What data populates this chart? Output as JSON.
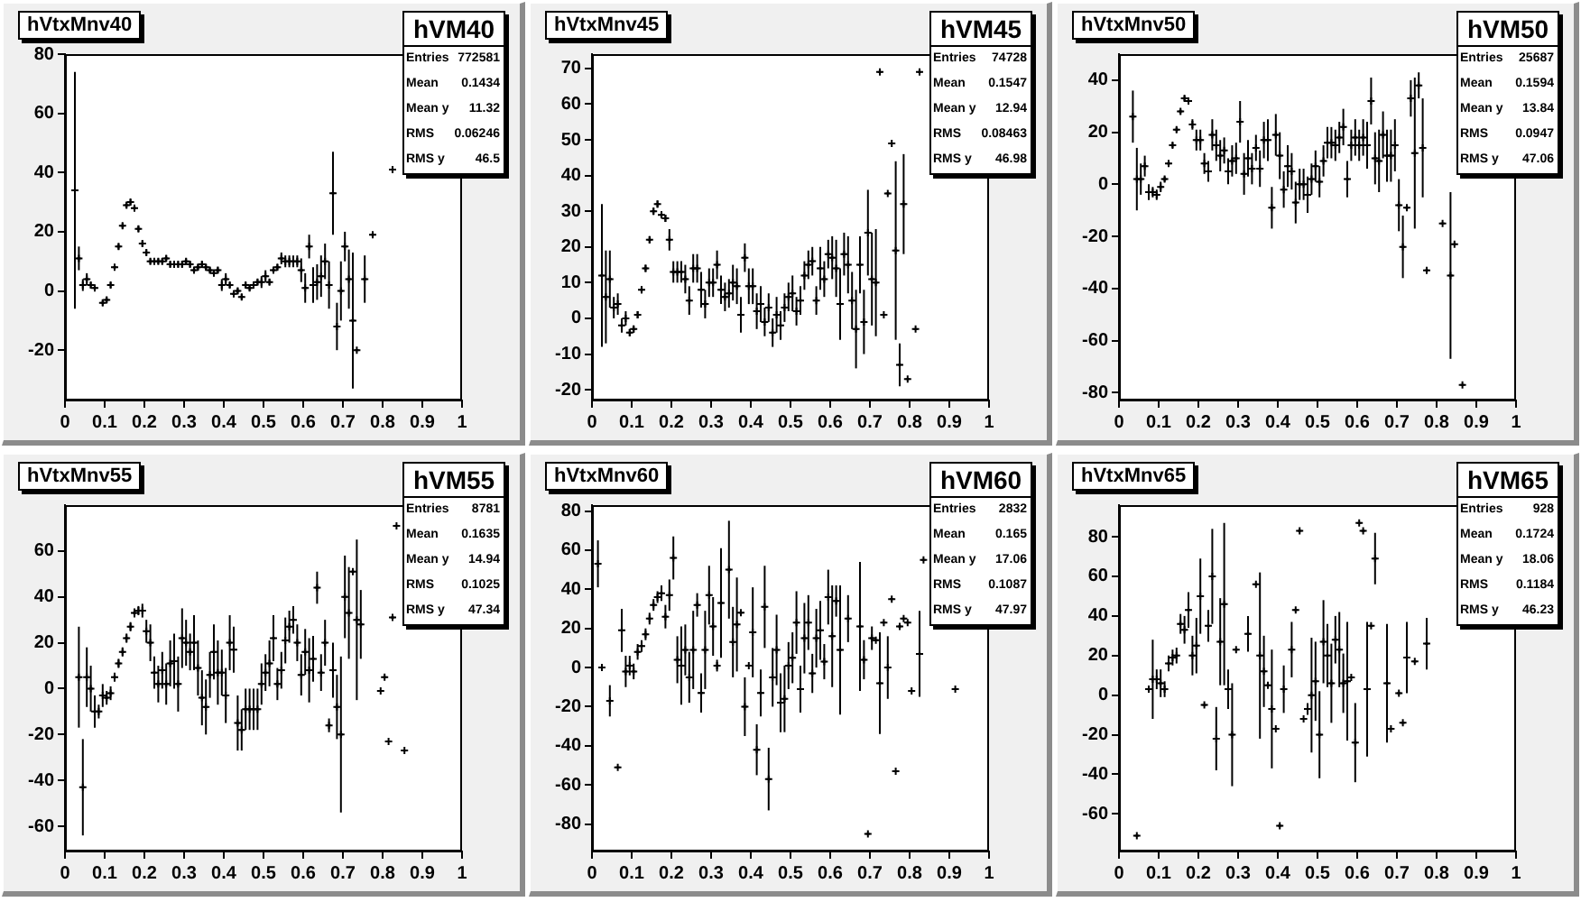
{
  "chart_data": [
    {
      "type": "scatter",
      "title": "hVtxMnv40",
      "annotations": [
        "hVM40",
        "Entries",
        "772581",
        "Mean",
        "0.1434",
        "Mean y",
        "11.32",
        "RMS",
        "0.06246",
        "RMS y",
        "46.5"
      ],
      "color": "#000000",
      "marker": "cross",
      "xlim": [
        0,
        1
      ],
      "xticks": [
        0,
        0.1,
        0.2,
        0.3,
        0.4,
        0.5,
        0.6,
        0.7,
        0.8,
        0.9,
        1
      ],
      "ylim": [
        -37,
        80
      ],
      "yticks": [
        -20,
        0,
        20,
        40,
        60,
        80
      ],
      "x": [
        0.025,
        0.035,
        0.045,
        0.055,
        0.065,
        0.075,
        0.095,
        0.105,
        0.115,
        0.125,
        0.135,
        0.145,
        0.155,
        0.165,
        0.175,
        0.185,
        0.195,
        0.205,
        0.215,
        0.225,
        0.235,
        0.245,
        0.255,
        0.265,
        0.275,
        0.285,
        0.295,
        0.305,
        0.315,
        0.325,
        0.335,
        0.345,
        0.355,
        0.365,
        0.375,
        0.385,
        0.395,
        0.405,
        0.415,
        0.425,
        0.435,
        0.445,
        0.455,
        0.465,
        0.475,
        0.485,
        0.495,
        0.505,
        0.515,
        0.525,
        0.535,
        0.545,
        0.555,
        0.565,
        0.575,
        0.585,
        0.595,
        0.605,
        0.615,
        0.625,
        0.635,
        0.645,
        0.655,
        0.665,
        0.675,
        0.685,
        0.695,
        0.705,
        0.715,
        0.725,
        0.735,
        0.755,
        0.775,
        0.825
      ],
      "values": [
        34,
        11,
        2,
        4,
        2,
        1,
        -4,
        -3,
        2,
        8,
        15,
        22,
        29,
        30,
        28,
        21,
        16,
        13,
        10,
        10,
        10,
        10,
        11,
        9,
        9,
        9,
        9,
        10,
        9,
        7,
        8,
        9,
        8,
        7,
        6,
        7,
        2,
        4,
        2,
        -1,
        0,
        -2,
        2,
        1,
        2,
        3,
        3,
        5,
        3,
        7,
        8,
        11,
        10,
        10,
        10,
        10,
        7,
        1,
        15,
        2,
        3,
        5,
        10,
        2,
        33,
        -12,
        0,
        15,
        4,
        -10,
        -20,
        4,
        19,
        41
      ],
      "errors": [
        40,
        4,
        2,
        2,
        1,
        1,
        1,
        1,
        1,
        1,
        1,
        1,
        1,
        1,
        1,
        1,
        1,
        1,
        1,
        1,
        1,
        1,
        1,
        1,
        1,
        1,
        1,
        1,
        1,
        1,
        1,
        1,
        1,
        1,
        1,
        1,
        2,
        2,
        1,
        1,
        1,
        1,
        1,
        1,
        1,
        1,
        2,
        2,
        1,
        1,
        1,
        2,
        2,
        2,
        2,
        2,
        4,
        5,
        4,
        6,
        6,
        7,
        6,
        8,
        14,
        8,
        10,
        5,
        10,
        23,
        null,
        8,
        null,
        null
      ],
      "xerrors": [
        0.005,
        0.005,
        0.005,
        0.005,
        0.005,
        0.005,
        0.005,
        0.005,
        0.005,
        0.005,
        0.005,
        0.005,
        0.005,
        0.005,
        0.005,
        0.005,
        0.005,
        0.005,
        0.005,
        0.005,
        0.005,
        0.005,
        0.005,
        0.005,
        0.005,
        0.005,
        0.005,
        0.005,
        0.005,
        0.005,
        0.005,
        0.005,
        0.005,
        0.005,
        0.005,
        0.005,
        0.005,
        0.005,
        0.005,
        0.005,
        0.005,
        0.005,
        0.005,
        0.005,
        0.005,
        0.005,
        0.005,
        0.005,
        0.005,
        0.005,
        0.005,
        0.005,
        0.005,
        0.005,
        0.005,
        0.005,
        0.005,
        0.005,
        0.005,
        0.005,
        0.005,
        0.005,
        0.005,
        0.005,
        0.005,
        0.005,
        0.005,
        0.005,
        0.005,
        0.005,
        0.005,
        0.005,
        0.005,
        0.005
      ]
    },
    {
      "type": "scatter",
      "title": "hVtxMnv45",
      "annotations": [
        "hVM45",
        "Entries",
        "74728",
        "Mean",
        "0.1547",
        "Mean y",
        "12.94",
        "RMS",
        "0.08463",
        "RMS y",
        "46.98"
      ],
      "color": "#000000",
      "marker": "cross",
      "xlim": [
        0,
        1
      ],
      "xticks": [
        0,
        0.1,
        0.2,
        0.3,
        0.4,
        0.5,
        0.6,
        0.7,
        0.8,
        0.9,
        1
      ],
      "ylim": [
        -23,
        74
      ],
      "yticks": [
        -20,
        -10,
        0,
        10,
        20,
        30,
        40,
        50,
        60,
        70
      ],
      "x": [
        0.025,
        0.035,
        0.045,
        0.055,
        0.065,
        0.075,
        0.085,
        0.095,
        0.105,
        0.115,
        0.125,
        0.135,
        0.145,
        0.155,
        0.165,
        0.175,
        0.185,
        0.195,
        0.205,
        0.215,
        0.225,
        0.235,
        0.245,
        0.255,
        0.265,
        0.275,
        0.285,
        0.295,
        0.305,
        0.315,
        0.325,
        0.335,
        0.345,
        0.355,
        0.365,
        0.375,
        0.385,
        0.395,
        0.405,
        0.415,
        0.425,
        0.435,
        0.445,
        0.455,
        0.465,
        0.475,
        0.485,
        0.495,
        0.505,
        0.515,
        0.525,
        0.535,
        0.545,
        0.555,
        0.565,
        0.575,
        0.585,
        0.595,
        0.605,
        0.615,
        0.625,
        0.635,
        0.645,
        0.655,
        0.665,
        0.675,
        0.685,
        0.695,
        0.705,
        0.715,
        0.725,
        0.735,
        0.745,
        0.755,
        0.765,
        0.775,
        0.785,
        0.795,
        0.815,
        0.825
      ],
      "values": [
        12,
        6,
        11,
        3,
        4,
        -2,
        0,
        -4,
        -3,
        1,
        8,
        14,
        22,
        30,
        32,
        29,
        28,
        22,
        13,
        13,
        13,
        11,
        5,
        14,
        14,
        8,
        4,
        10,
        10,
        15,
        8,
        6,
        7,
        10,
        9,
        1,
        17,
        9,
        9,
        2,
        4,
        -1,
        3,
        -4,
        1,
        -2,
        3,
        6,
        7,
        2,
        5,
        12,
        15,
        16,
        5,
        14,
        11,
        18,
        17,
        14,
        4,
        18,
        15,
        5,
        -3,
        15,
        -1,
        24,
        11,
        10,
        69,
        1,
        35,
        49,
        19,
        -13,
        32,
        -17,
        -3,
        69
      ],
      "errors": [
        20,
        13,
        8,
        3,
        3,
        2,
        2,
        1,
        1,
        1,
        1,
        1,
        1,
        1,
        1,
        1,
        1,
        3,
        3,
        3,
        3,
        4,
        4,
        4,
        4,
        5,
        4,
        4,
        4,
        4,
        4,
        4,
        4,
        5,
        5,
        5,
        4,
        5,
        5,
        5,
        5,
        4,
        4,
        4,
        5,
        4,
        4,
        4,
        5,
        4,
        4,
        4,
        4,
        4,
        4,
        6,
        5,
        4,
        6,
        8,
        10,
        6,
        8,
        8,
        11,
        8,
        9,
        12,
        13,
        15,
        null,
        null,
        null,
        null,
        25,
        6,
        14,
        null,
        null,
        null
      ],
      "xerrors": [
        0.005,
        0.005,
        0.005,
        0.005,
        0.005,
        0.005,
        0.005,
        0.005,
        0.005,
        0.005,
        0.005,
        0.005,
        0.005,
        0.005,
        0.005,
        0.005,
        0.005,
        0.005,
        0.005,
        0.005,
        0.005,
        0.005,
        0.005,
        0.005,
        0.005,
        0.005,
        0.005,
        0.005,
        0.005,
        0.005,
        0.005,
        0.005,
        0.005,
        0.005,
        0.005,
        0.005,
        0.005,
        0.005,
        0.005,
        0.005,
        0.005,
        0.005,
        0.005,
        0.005,
        0.005,
        0.005,
        0.005,
        0.005,
        0.005,
        0.005,
        0.005,
        0.005,
        0.005,
        0.005,
        0.005,
        0.005,
        0.005,
        0.005,
        0.005,
        0.005,
        0.005,
        0.005,
        0.005,
        0.005,
        0.005,
        0.005,
        0.005,
        0.005,
        0.005,
        0.005,
        0.005,
        0.005,
        0.005,
        0.005,
        0.005,
        0.005,
        0.005,
        0.005,
        0.005,
        0.005
      ]
    },
    {
      "type": "scatter",
      "title": "hVtxMnv50",
      "annotations": [
        "hVM50",
        "Entries",
        "25687",
        "Mean",
        "0.1594",
        "Mean y",
        "13.84",
        "RMS",
        "0.0947",
        "RMS y",
        "47.06"
      ],
      "color": "#000000",
      "marker": "cross",
      "xlim": [
        0,
        1
      ],
      "xticks": [
        0,
        0.1,
        0.2,
        0.3,
        0.4,
        0.5,
        0.6,
        0.7,
        0.8,
        0.9,
        1
      ],
      "ylim": [
        -83,
        50
      ],
      "yticks": [
        -80,
        -60,
        -40,
        -20,
        0,
        20,
        40
      ],
      "x": [
        0.035,
        0.045,
        0.055,
        0.065,
        0.075,
        0.085,
        0.095,
        0.105,
        0.115,
        0.125,
        0.135,
        0.145,
        0.155,
        0.165,
        0.175,
        0.185,
        0.195,
        0.205,
        0.215,
        0.225,
        0.235,
        0.245,
        0.255,
        0.265,
        0.275,
        0.285,
        0.295,
        0.305,
        0.315,
        0.325,
        0.335,
        0.345,
        0.355,
        0.365,
        0.375,
        0.385,
        0.395,
        0.405,
        0.415,
        0.425,
        0.435,
        0.445,
        0.455,
        0.465,
        0.475,
        0.485,
        0.495,
        0.505,
        0.515,
        0.525,
        0.535,
        0.545,
        0.555,
        0.565,
        0.575,
        0.585,
        0.595,
        0.605,
        0.615,
        0.625,
        0.635,
        0.645,
        0.655,
        0.665,
        0.675,
        0.685,
        0.695,
        0.705,
        0.715,
        0.725,
        0.735,
        0.745,
        0.755,
        0.765,
        0.775,
        0.815,
        0.835,
        0.845,
        0.865
      ],
      "values": [
        26,
        2,
        2,
        7,
        -3,
        -3,
        -4,
        -1,
        2,
        8,
        15,
        21,
        28,
        33,
        32,
        23,
        17,
        17,
        8,
        5,
        19,
        15,
        11,
        13,
        5,
        9,
        10,
        24,
        4,
        10,
        6,
        14,
        6,
        17,
        17,
        -9,
        19,
        11,
        -2,
        7,
        5,
        -7,
        0,
        0,
        -4,
        2,
        7,
        1,
        9,
        16,
        16,
        15,
        18,
        22,
        2,
        15,
        18,
        15,
        18,
        15,
        32,
        10,
        9,
        19,
        11,
        11,
        15,
        -8,
        -24,
        -9,
        33,
        12,
        38,
        14,
        -33,
        -15,
        -35,
        -23,
        -77
      ],
      "errors": [
        10,
        12,
        6,
        4,
        3,
        2,
        2,
        2,
        1,
        1,
        1,
        1,
        1,
        1,
        1,
        2,
        4,
        4,
        4,
        4,
        6,
        6,
        6,
        5,
        5,
        6,
        6,
        8,
        8,
        7,
        6,
        5,
        7,
        7,
        8,
        8,
        8,
        9,
        7,
        8,
        7,
        8,
        6,
        6,
        7,
        6,
        6,
        6,
        6,
        6,
        6,
        6,
        6,
        7,
        7,
        6,
        7,
        6,
        7,
        9,
        9,
        10,
        12,
        9,
        10,
        10,
        10,
        10,
        12,
        null,
        7,
        29,
        5,
        19,
        null,
        null,
        32,
        null,
        null
      ],
      "xerrors": [
        0.005,
        0.005,
        0.005,
        0.005,
        0.005,
        0.005,
        0.005,
        0.005,
        0.005,
        0.005,
        0.005,
        0.005,
        0.005,
        0.005,
        0.005,
        0.005,
        0.005,
        0.005,
        0.005,
        0.005,
        0.005,
        0.005,
        0.005,
        0.005,
        0.005,
        0.005,
        0.005,
        0.005,
        0.005,
        0.005,
        0.005,
        0.005,
        0.005,
        0.005,
        0.005,
        0.005,
        0.005,
        0.005,
        0.005,
        0.005,
        0.005,
        0.005,
        0.005,
        0.005,
        0.005,
        0.005,
        0.005,
        0.005,
        0.005,
        0.005,
        0.005,
        0.005,
        0.005,
        0.005,
        0.005,
        0.005,
        0.005,
        0.005,
        0.005,
        0.005,
        0.005,
        0.005,
        0.005,
        0.005,
        0.005,
        0.005,
        0.005,
        0.005,
        0.005,
        0.005,
        0.005,
        0.005,
        0.005,
        0.005,
        0.005,
        0.005,
        0.005,
        0.005,
        0.005
      ]
    },
    {
      "type": "scatter",
      "title": "hVtxMnv55",
      "annotations": [
        "hVM55",
        "Entries",
        "8781",
        "Mean",
        "0.1635",
        "Mean y",
        "14.94",
        "RMS",
        "0.1025",
        "RMS y",
        "47.34"
      ],
      "color": "#000000",
      "marker": "cross",
      "xlim": [
        0,
        1
      ],
      "xticks": [
        0,
        0.1,
        0.2,
        0.3,
        0.4,
        0.5,
        0.6,
        0.7,
        0.8,
        0.9,
        1
      ],
      "ylim": [
        -71,
        80
      ],
      "yticks": [
        -60,
        -40,
        -20,
        0,
        20,
        40,
        60
      ],
      "x": [
        0.035,
        0.045,
        0.055,
        0.065,
        0.075,
        0.085,
        0.095,
        0.105,
        0.115,
        0.125,
        0.135,
        0.145,
        0.155,
        0.165,
        0.175,
        0.185,
        0.195,
        0.205,
        0.215,
        0.225,
        0.235,
        0.245,
        0.255,
        0.265,
        0.275,
        0.285,
        0.295,
        0.305,
        0.315,
        0.325,
        0.335,
        0.345,
        0.355,
        0.365,
        0.375,
        0.385,
        0.395,
        0.405,
        0.415,
        0.425,
        0.435,
        0.445,
        0.455,
        0.465,
        0.475,
        0.485,
        0.495,
        0.505,
        0.515,
        0.525,
        0.535,
        0.545,
        0.555,
        0.565,
        0.575,
        0.585,
        0.595,
        0.605,
        0.615,
        0.625,
        0.635,
        0.645,
        0.655,
        0.665,
        0.675,
        0.685,
        0.695,
        0.705,
        0.715,
        0.725,
        0.735,
        0.745,
        0.795,
        0.805,
        0.815,
        0.825,
        0.835,
        0.855
      ],
      "values": [
        5,
        -43,
        5,
        0,
        -10,
        -10,
        -3,
        -4,
        -2,
        5,
        11,
        16,
        22,
        27,
        33,
        34,
        34,
        25,
        20,
        7,
        2,
        8,
        2,
        11,
        12,
        2,
        22,
        20,
        16,
        20,
        9,
        -4,
        -8,
        6,
        16,
        7,
        7,
        -3,
        20,
        17,
        -15,
        -18,
        -9,
        -9,
        -9,
        -9,
        2,
        7,
        11,
        22,
        2,
        8,
        21,
        27,
        30,
        20,
        6,
        16,
        8,
        13,
        44,
        7,
        20,
        -16,
        8,
        -8,
        -20,
        40,
        33,
        51,
        30,
        28,
        -1,
        5,
        -23,
        31,
        71,
        -27
      ],
      "errors": [
        22,
        21,
        13,
        10,
        7,
        3,
        5,
        3,
        3,
        2,
        2,
        2,
        2,
        2,
        2,
        2,
        3,
        5,
        8,
        7,
        8,
        8,
        9,
        10,
        12,
        12,
        13,
        10,
        8,
        12,
        12,
        12,
        12,
        10,
        12,
        14,
        10,
        12,
        12,
        10,
        12,
        9,
        9,
        9,
        9,
        9,
        9,
        8,
        10,
        10,
        7,
        8,
        10,
        7,
        6,
        8,
        9,
        10,
        14,
        10,
        7,
        8,
        10,
        3,
        12,
        14,
        34,
        18,
        20,
        null,
        35,
        15,
        null,
        null,
        null,
        null,
        null,
        null
      ],
      "xerrors": [
        0.005,
        0.005,
        0.005,
        0.005,
        0.005,
        0.005,
        0.005,
        0.005,
        0.005,
        0.005,
        0.005,
        0.005,
        0.005,
        0.005,
        0.005,
        0.005,
        0.005,
        0.005,
        0.005,
        0.005,
        0.005,
        0.005,
        0.005,
        0.005,
        0.005,
        0.005,
        0.005,
        0.005,
        0.005,
        0.005,
        0.005,
        0.005,
        0.005,
        0.005,
        0.005,
        0.005,
        0.005,
        0.005,
        0.005,
        0.005,
        0.005,
        0.005,
        0.005,
        0.005,
        0.005,
        0.005,
        0.005,
        0.005,
        0.005,
        0.005,
        0.005,
        0.005,
        0.005,
        0.005,
        0.005,
        0.005,
        0.005,
        0.005,
        0.005,
        0.005,
        0.005,
        0.005,
        0.005,
        0.005,
        0.005,
        0.005,
        0.005,
        0.005,
        0.005,
        0.005,
        0.005,
        0.005,
        0.005,
        0.005,
        0.005,
        0.005,
        0.005,
        0.005
      ]
    },
    {
      "type": "scatter",
      "title": "hVtxMnv60",
      "annotations": [
        "hVM60",
        "Entries",
        "2832",
        "Mean",
        "0.165",
        "Mean y",
        "17.06",
        "RMS",
        "0.1087",
        "RMS y",
        "47.97"
      ],
      "color": "#000000",
      "marker": "cross",
      "xlim": [
        0,
        1
      ],
      "xticks": [
        0,
        0.1,
        0.2,
        0.3,
        0.4,
        0.5,
        0.6,
        0.7,
        0.8,
        0.9,
        1
      ],
      "ylim": [
        -94,
        83
      ],
      "yticks": [
        -80,
        -60,
        -40,
        -20,
        0,
        20,
        40,
        60,
        80
      ],
      "x": [
        0.015,
        0.025,
        0.045,
        0.065,
        0.075,
        0.085,
        0.095,
        0.105,
        0.115,
        0.125,
        0.135,
        0.145,
        0.155,
        0.165,
        0.175,
        0.185,
        0.195,
        0.205,
        0.215,
        0.225,
        0.235,
        0.245,
        0.255,
        0.265,
        0.275,
        0.285,
        0.295,
        0.305,
        0.315,
        0.325,
        0.345,
        0.355,
        0.365,
        0.375,
        0.385,
        0.395,
        0.405,
        0.415,
        0.425,
        0.435,
        0.445,
        0.455,
        0.465,
        0.475,
        0.485,
        0.495,
        0.505,
        0.515,
        0.525,
        0.535,
        0.545,
        0.555,
        0.565,
        0.575,
        0.585,
        0.595,
        0.605,
        0.615,
        0.625,
        0.645,
        0.675,
        0.685,
        0.695,
        0.705,
        0.715,
        0.725,
        0.735,
        0.745,
        0.755,
        0.765,
        0.775,
        0.785,
        0.795,
        0.805,
        0.825,
        0.835,
        0.915
      ],
      "values": [
        53,
        0,
        -17,
        -51,
        19,
        -2,
        1,
        -2,
        8,
        11,
        17,
        25,
        32,
        36,
        38,
        26,
        37,
        56,
        4,
        1,
        9,
        -5,
        9,
        32,
        -13,
        9,
        37,
        21,
        1,
        33,
        50,
        13,
        22,
        28,
        -20,
        1,
        18,
        -42,
        -13,
        31,
        -57,
        -5,
        9,
        -18,
        -16,
        1,
        5,
        23,
        -11,
        15,
        23,
        -3,
        15,
        19,
        3,
        36,
        16,
        34,
        9,
        25,
        21,
        4,
        -85,
        15,
        14,
        -8,
        23,
        0,
        35,
        -53,
        21,
        25,
        23,
        -12,
        7,
        55,
        -11
      ],
      "errors": [
        12,
        null,
        8,
        null,
        11,
        8,
        5,
        4,
        4,
        3,
        3,
        3,
        3,
        3,
        4,
        6,
        8,
        11,
        12,
        20,
        13,
        13,
        20,
        6,
        10,
        20,
        15,
        15,
        3,
        28,
        25,
        18,
        24,
        null,
        15,
        null,
        23,
        13,
        12,
        21,
        16,
        15,
        18,
        15,
        17,
        12,
        13,
        16,
        12,
        18,
        14,
        10,
        15,
        15,
        9,
        14,
        26,
        8,
        33,
        12,
        33,
        10,
        null,
        6,
        null,
        26,
        null,
        16,
        null,
        null,
        null,
        null,
        null,
        null,
        22,
        null,
        null
      ],
      "xerrors": [
        0.005,
        0.005,
        0.005,
        0.005,
        0.005,
        0.005,
        0.005,
        0.005,
        0.005,
        0.005,
        0.005,
        0.005,
        0.005,
        0.005,
        0.005,
        0.005,
        0.005,
        0.005,
        0.005,
        0.005,
        0.005,
        0.005,
        0.005,
        0.005,
        0.005,
        0.005,
        0.005,
        0.005,
        0.005,
        0.005,
        0.005,
        0.005,
        0.005,
        0.005,
        0.005,
        0.005,
        0.005,
        0.005,
        0.005,
        0.005,
        0.005,
        0.005,
        0.005,
        0.005,
        0.005,
        0.005,
        0.005,
        0.005,
        0.005,
        0.005,
        0.005,
        0.005,
        0.005,
        0.005,
        0.005,
        0.005,
        0.005,
        0.005,
        0.005,
        0.005,
        0.005,
        0.005,
        0.005,
        0.005,
        0.005,
        0.005,
        0.005,
        0.005,
        0.005,
        0.005,
        0.005,
        0.005,
        0.005,
        0.005,
        0.005,
        0.005,
        0.005
      ]
    },
    {
      "type": "scatter",
      "title": "hVtxMnv65",
      "annotations": [
        "hVM65",
        "Entries",
        "928",
        "Mean",
        "0.1724",
        "Mean y",
        "18.06",
        "RMS",
        "0.1184",
        "RMS y",
        "46.23"
      ],
      "color": "#000000",
      "marker": "cross",
      "xlim": [
        0,
        1
      ],
      "xticks": [
        0,
        0.1,
        0.2,
        0.3,
        0.4,
        0.5,
        0.6,
        0.7,
        0.8,
        0.9,
        1
      ],
      "ylim": [
        -79,
        96
      ],
      "yticks": [
        -60,
        -40,
        -20,
        0,
        20,
        40,
        60,
        80
      ],
      "x": [
        0.045,
        0.075,
        0.085,
        0.095,
        0.105,
        0.115,
        0.125,
        0.135,
        0.145,
        0.155,
        0.165,
        0.175,
        0.185,
        0.195,
        0.205,
        0.215,
        0.225,
        0.235,
        0.245,
        0.255,
        0.265,
        0.275,
        0.285,
        0.295,
        0.325,
        0.345,
        0.355,
        0.365,
        0.375,
        0.385,
        0.395,
        0.405,
        0.415,
        0.435,
        0.445,
        0.455,
        0.465,
        0.475,
        0.485,
        0.495,
        0.505,
        0.515,
        0.525,
        0.535,
        0.545,
        0.555,
        0.565,
        0.575,
        0.585,
        0.595,
        0.605,
        0.615,
        0.625,
        0.635,
        0.645,
        0.675,
        0.685,
        0.705,
        0.715,
        0.725,
        0.745,
        0.775
      ],
      "values": [
        -71,
        3,
        8,
        8,
        6,
        3,
        16,
        19,
        20,
        36,
        33,
        43,
        20,
        25,
        50,
        -5,
        35,
        60,
        -22,
        27,
        46,
        3,
        -20,
        23,
        31,
        56,
        20,
        12,
        5,
        -7,
        -17,
        -66,
        3,
        23,
        43,
        83,
        -12,
        -7,
        0,
        7,
        -20,
        27,
        20,
        6,
        28,
        23,
        6,
        7,
        9,
        -24,
        87,
        83,
        3,
        35,
        69,
        6,
        -17,
        1,
        -14,
        19,
        17,
        26
      ],
      "errors": [
        null,
        null,
        20,
        5,
        7,
        4,
        4,
        4,
        4,
        5,
        7,
        9,
        10,
        14,
        19,
        null,
        8,
        24,
        16,
        22,
        41,
        10,
        26,
        null,
        9,
        null,
        42,
        18,
        null,
        30,
        null,
        null,
        12,
        14,
        null,
        null,
        null,
        3,
        29,
        20,
        22,
        21,
        16,
        20,
        12,
        19,
        15,
        30,
        null,
        20,
        null,
        null,
        34,
        null,
        13,
        30,
        null,
        null,
        null,
        18,
        null,
        13
      ],
      "xerrors": [
        0.005,
        0.005,
        0.005,
        0.005,
        0.005,
        0.005,
        0.005,
        0.005,
        0.005,
        0.005,
        0.005,
        0.005,
        0.005,
        0.005,
        0.005,
        0.005,
        0.005,
        0.005,
        0.005,
        0.005,
        0.005,
        0.005,
        0.005,
        0.005,
        0.005,
        0.005,
        0.005,
        0.005,
        0.005,
        0.005,
        0.005,
        0.005,
        0.005,
        0.005,
        0.005,
        0.005,
        0.005,
        0.005,
        0.005,
        0.005,
        0.005,
        0.005,
        0.005,
        0.005,
        0.005,
        0.005,
        0.005,
        0.005,
        0.005,
        0.005,
        0.005,
        0.005,
        0.005,
        0.005,
        0.005,
        0.005,
        0.005,
        0.005,
        0.005,
        0.005,
        0.005,
        0.005
      ]
    }
  ]
}
